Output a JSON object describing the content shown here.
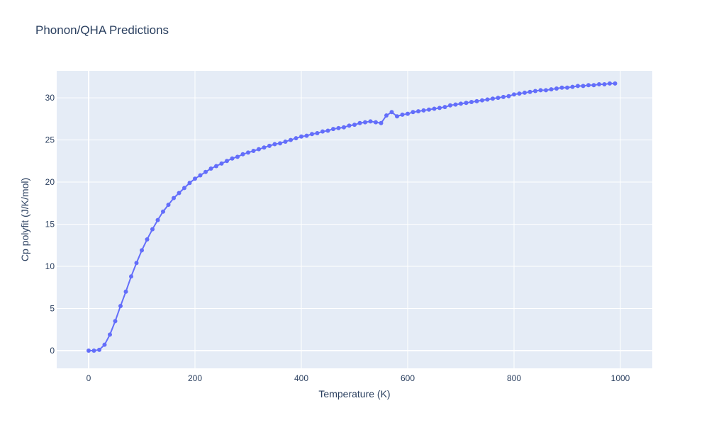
{
  "chart_data": {
    "type": "line",
    "title": "Phonon/QHA Predictions",
    "xlabel": "Temperature (K)",
    "ylabel": "Cp polyfit (J/K/mol)",
    "xlim": [
      -60,
      1060
    ],
    "ylim": [
      -2.1,
      33.2
    ],
    "xticks": [
      0,
      200,
      400,
      600,
      800,
      1000
    ],
    "xtick_labels": [
      "0",
      "200",
      "400",
      "600",
      "800",
      "1000"
    ],
    "yticks": [
      0,
      5,
      10,
      15,
      20,
      25,
      30
    ],
    "ytick_labels": [
      "0",
      "5",
      "10",
      "15",
      "20",
      "25",
      "30"
    ],
    "grid": true,
    "legend": "none",
    "colors": {
      "series": "#636efa",
      "plot_bg": "#e5ecf6",
      "grid": "#ffffff",
      "text": "#2a3f5f"
    },
    "series": [
      {
        "x": [
          0,
          10,
          20,
          30,
          40,
          50,
          60,
          70,
          80,
          90,
          100,
          110,
          120,
          130,
          140,
          150,
          160,
          170,
          180,
          190,
          200,
          210,
          220,
          230,
          240,
          250,
          260,
          270,
          280,
          290,
          300,
          310,
          320,
          330,
          340,
          350,
          360,
          370,
          380,
          390,
          400,
          410,
          420,
          430,
          440,
          450,
          460,
          470,
          480,
          490,
          500,
          510,
          520,
          530,
          540,
          550,
          560,
          570,
          580,
          590,
          600,
          610,
          620,
          630,
          640,
          650,
          660,
          670,
          680,
          690,
          700,
          710,
          720,
          730,
          740,
          750,
          760,
          770,
          780,
          790,
          800,
          810,
          820,
          830,
          840,
          850,
          860,
          870,
          880,
          890,
          900,
          910,
          920,
          930,
          940,
          950,
          960,
          970,
          980,
          990
        ],
        "y": [
          0.0,
          0.0,
          0.1,
          0.7,
          1.9,
          3.5,
          5.3,
          7.0,
          8.8,
          10.4,
          11.9,
          13.2,
          14.4,
          15.5,
          16.5,
          17.3,
          18.1,
          18.7,
          19.3,
          19.9,
          20.4,
          20.8,
          21.2,
          21.6,
          21.9,
          22.2,
          22.5,
          22.8,
          23.0,
          23.3,
          23.5,
          23.7,
          23.9,
          24.1,
          24.3,
          24.5,
          24.6,
          24.8,
          25.0,
          25.2,
          25.4,
          25.5,
          25.7,
          25.8,
          26.0,
          26.1,
          26.3,
          26.4,
          26.5,
          26.7,
          26.8,
          27.0,
          27.1,
          27.2,
          27.1,
          27.0,
          27.9,
          28.3,
          27.8,
          28.0,
          28.1,
          28.3,
          28.4,
          28.5,
          28.6,
          28.7,
          28.8,
          28.9,
          29.1,
          29.2,
          29.3,
          29.4,
          29.5,
          29.6,
          29.7,
          29.8,
          29.9,
          30.0,
          30.1,
          30.2,
          30.4,
          30.5,
          30.6,
          30.7,
          30.8,
          30.9,
          30.9,
          31.0,
          31.1,
          31.2,
          31.2,
          31.3,
          31.4,
          31.4,
          31.5,
          31.5,
          31.6,
          31.6,
          31.7,
          31.7
        ]
      }
    ]
  }
}
